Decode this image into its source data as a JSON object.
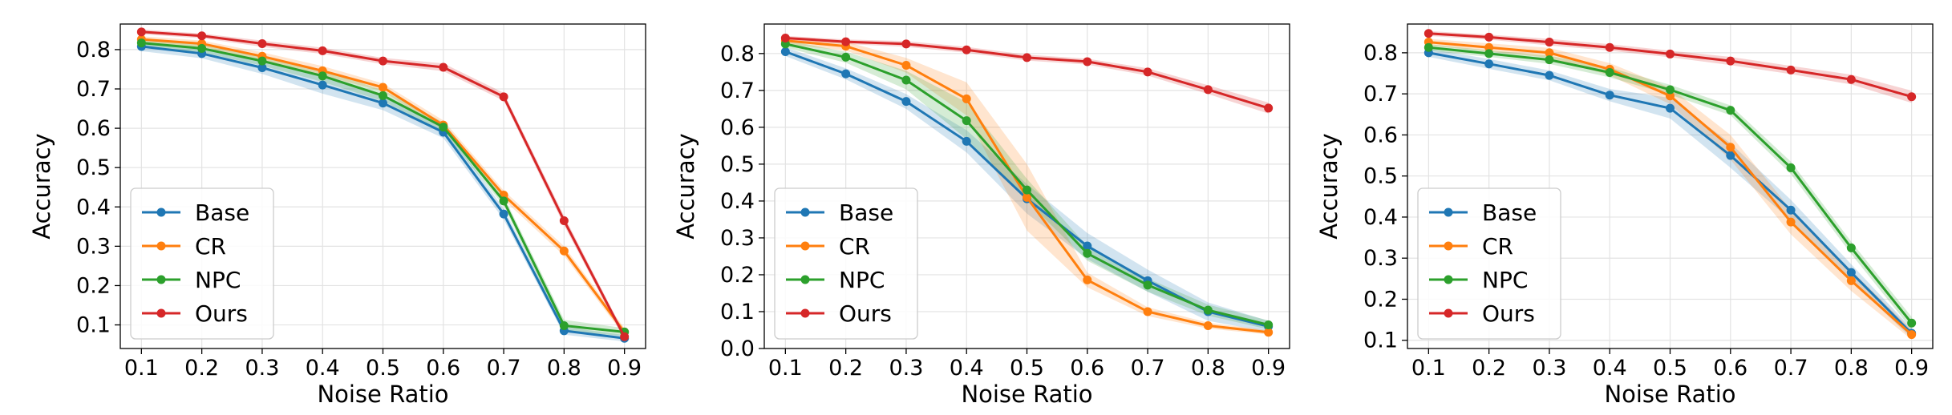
{
  "colors": {
    "Base": "#1f77b4",
    "CR": "#ff7f0e",
    "NPC": "#2ca02c",
    "Ours": "#d62728"
  },
  "chart_data": [
    {
      "type": "line",
      "xlabel": "Noise Ratio",
      "ylabel": "Accuracy",
      "x": [
        0.1,
        0.2,
        0.3,
        0.4,
        0.5,
        0.6,
        0.7,
        0.8,
        0.9
      ],
      "x_ticks": [
        "0.1",
        "0.2",
        "0.3",
        "0.4",
        "0.5",
        "0.6",
        "0.7",
        "0.8",
        "0.9"
      ],
      "xlim": [
        0.065,
        0.935
      ],
      "ylim": [
        0.04,
        0.865
      ],
      "y_ticks": [
        0.1,
        0.2,
        0.3,
        0.4,
        0.5,
        0.6,
        0.7,
        0.8
      ],
      "y_tick_labels": [
        "0.1",
        "0.2",
        "0.3",
        "0.4",
        "0.5",
        "0.6",
        "0.7",
        "0.8"
      ],
      "grid": true,
      "legend_position": "lower-left",
      "series": [
        {
          "name": "Base",
          "values": [
            0.808,
            0.79,
            0.754,
            0.71,
            0.664,
            0.59,
            0.382,
            0.085,
            0.066
          ],
          "band": [
            0.012,
            0.012,
            0.016,
            0.022,
            0.018,
            0.015,
            0.014,
            0.01,
            0.008
          ]
        },
        {
          "name": "CR",
          "values": [
            0.826,
            0.815,
            0.783,
            0.746,
            0.704,
            0.608,
            0.43,
            0.288,
            0.082
          ],
          "band": [
            0.008,
            0.008,
            0.01,
            0.012,
            0.01,
            0.012,
            0.012,
            0.012,
            0.01
          ]
        },
        {
          "name": "NPC",
          "values": [
            0.817,
            0.803,
            0.771,
            0.733,
            0.683,
            0.603,
            0.415,
            0.098,
            0.082
          ],
          "band": [
            0.01,
            0.01,
            0.012,
            0.015,
            0.014,
            0.012,
            0.012,
            0.015,
            0.01
          ]
        },
        {
          "name": "Ours",
          "values": [
            0.845,
            0.835,
            0.815,
            0.797,
            0.771,
            0.755,
            0.68,
            0.365,
            0.07
          ],
          "band": [
            0.006,
            0.006,
            0.008,
            0.008,
            0.008,
            0.01,
            0.01,
            0.012,
            0.008
          ]
        }
      ]
    },
    {
      "type": "line",
      "xlabel": "Noise Ratio",
      "ylabel": "Accuracy",
      "x": [
        0.1,
        0.2,
        0.3,
        0.4,
        0.5,
        0.6,
        0.7,
        0.8,
        0.9
      ],
      "x_ticks": [
        "0.1",
        "0.2",
        "0.3",
        "0.4",
        "0.5",
        "0.6",
        "0.7",
        "0.8",
        "0.9"
      ],
      "xlim": [
        0.065,
        0.935
      ],
      "ylim": [
        0.0,
        0.88
      ],
      "y_ticks": [
        0.0,
        0.1,
        0.2,
        0.3,
        0.4,
        0.5,
        0.6,
        0.7,
        0.8
      ],
      "y_tick_labels": [
        "0.0",
        "0.1",
        "0.2",
        "0.3",
        "0.4",
        "0.5",
        "0.6",
        "0.7",
        "0.8"
      ],
      "grid": true,
      "legend_position": "lower-left",
      "series": [
        {
          "name": "Base",
          "values": [
            0.805,
            0.745,
            0.67,
            0.562,
            0.406,
            0.278,
            0.184,
            0.1,
            0.06
          ],
          "band": [
            0.012,
            0.015,
            0.02,
            0.03,
            0.04,
            0.035,
            0.03,
            0.025,
            0.015
          ]
        },
        {
          "name": "CR",
          "values": [
            0.835,
            0.82,
            0.768,
            0.677,
            0.41,
            0.186,
            0.1,
            0.062,
            0.044
          ],
          "band": [
            0.01,
            0.012,
            0.02,
            0.045,
            0.09,
            0.02,
            0.012,
            0.008,
            0.006
          ]
        },
        {
          "name": "NPC",
          "values": [
            0.826,
            0.79,
            0.728,
            0.618,
            0.43,
            0.258,
            0.172,
            0.104,
            0.064
          ],
          "band": [
            0.01,
            0.015,
            0.025,
            0.05,
            0.03,
            0.02,
            0.018,
            0.015,
            0.012
          ]
        },
        {
          "name": "Ours",
          "values": [
            0.842,
            0.832,
            0.826,
            0.81,
            0.789,
            0.778,
            0.75,
            0.702,
            0.652
          ],
          "band": [
            0.006,
            0.006,
            0.008,
            0.008,
            0.008,
            0.008,
            0.01,
            0.012,
            0.015
          ]
        }
      ]
    },
    {
      "type": "line",
      "xlabel": "Noise Ratio",
      "ylabel": "Accuracy",
      "x": [
        0.1,
        0.2,
        0.3,
        0.4,
        0.5,
        0.6,
        0.7,
        0.8,
        0.9
      ],
      "x_ticks": [
        "0.1",
        "0.2",
        "0.3",
        "0.4",
        "0.5",
        "0.6",
        "0.7",
        "0.8",
        "0.9"
      ],
      "xlim": [
        0.065,
        0.935
      ],
      "ylim": [
        0.08,
        0.87
      ],
      "y_ticks": [
        0.1,
        0.2,
        0.3,
        0.4,
        0.5,
        0.6,
        0.7,
        0.8
      ],
      "y_tick_labels": [
        "0.1",
        "0.2",
        "0.3",
        "0.4",
        "0.5",
        "0.6",
        "0.7",
        "0.8"
      ],
      "grid": true,
      "legend_position": "lower-left",
      "series": [
        {
          "name": "Base",
          "values": [
            0.8,
            0.773,
            0.745,
            0.697,
            0.665,
            0.55,
            0.417,
            0.265,
            0.117
          ],
          "band": [
            0.01,
            0.012,
            0.012,
            0.015,
            0.025,
            0.03,
            0.025,
            0.02,
            0.012
          ]
        },
        {
          "name": "CR",
          "values": [
            0.826,
            0.813,
            0.8,
            0.76,
            0.695,
            0.57,
            0.388,
            0.245,
            0.114
          ],
          "band": [
            0.008,
            0.01,
            0.012,
            0.015,
            0.02,
            0.03,
            0.03,
            0.025,
            0.012
          ]
        },
        {
          "name": "NPC",
          "values": [
            0.813,
            0.798,
            0.783,
            0.752,
            0.71,
            0.66,
            0.52,
            0.325,
            0.142
          ],
          "band": [
            0.008,
            0.008,
            0.01,
            0.012,
            0.012,
            0.012,
            0.015,
            0.015,
            0.015
          ]
        },
        {
          "name": "Ours",
          "values": [
            0.847,
            0.838,
            0.826,
            0.813,
            0.797,
            0.78,
            0.758,
            0.735,
            0.693
          ],
          "band": [
            0.006,
            0.006,
            0.008,
            0.008,
            0.008,
            0.01,
            0.01,
            0.012,
            0.015
          ]
        }
      ]
    }
  ]
}
